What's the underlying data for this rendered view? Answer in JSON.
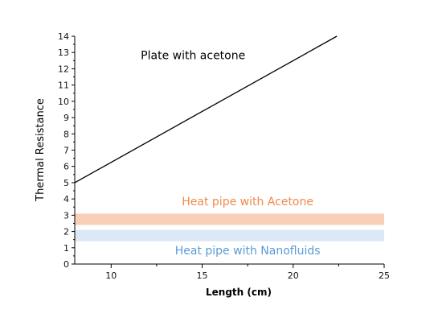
{
  "chart_data": {
    "type": "line",
    "title": "",
    "xlabel": "Length (cm)",
    "ylabel": "Thermal Resistance",
    "xlim": [
      8,
      25
    ],
    "ylim": [
      0,
      14
    ],
    "x_ticks": [
      10,
      15,
      20,
      25
    ],
    "y_ticks": [
      0,
      1,
      2,
      3,
      4,
      5,
      6,
      7,
      8,
      9,
      10,
      11,
      12,
      13,
      14
    ],
    "grid": false,
    "series": [
      {
        "name": "Plate with acetone",
        "type": "line",
        "color": "#000000",
        "x": [
          8,
          22.4
        ],
        "y": [
          5.0,
          14.0
        ]
      }
    ],
    "bands": [
      {
        "name": "Heat pipe with Acetone",
        "color": "#f8d0b8",
        "label_color": "#f28a4a",
        "x": [
          8,
          25
        ],
        "y_range": [
          2.4,
          3.1
        ]
      },
      {
        "name": "Heat pipe with Nanofluids",
        "color": "#dce8f6",
        "label_color": "#5b9bd5",
        "x": [
          8,
          25
        ],
        "y_range": [
          1.4,
          2.1
        ]
      }
    ],
    "annotations": [
      {
        "text": "Plate with acetone",
        "x": 14.5,
        "y": 12.6,
        "color": "#000000"
      },
      {
        "text": "Heat pipe with Acetone",
        "x": 17.5,
        "y": 3.6,
        "color": "#f28a4a"
      },
      {
        "text": "Heat pipe with Nanofluids",
        "x": 17.5,
        "y": 0.6,
        "color": "#5b9bd5"
      }
    ]
  }
}
